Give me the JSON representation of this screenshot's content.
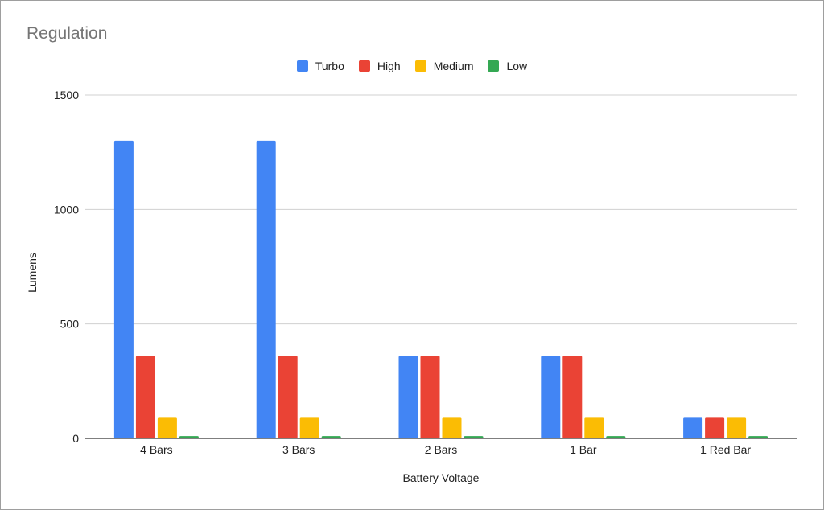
{
  "chart_data": {
    "type": "bar",
    "title": "Regulation",
    "xlabel": "Battery Voltage",
    "ylabel": "Lumens",
    "categories": [
      "4 Bars",
      "3 Bars",
      "2 Bars",
      "1 Bar",
      "1 Red Bar"
    ],
    "ylim": [
      0,
      1500
    ],
    "yticks": [
      "0",
      "500",
      "1000",
      "1500"
    ],
    "grid": true,
    "legend_position": "top-center",
    "series": [
      {
        "name": "Turbo",
        "color": "#4285f4",
        "values": [
          1300,
          1300,
          360,
          360,
          90
        ]
      },
      {
        "name": "High",
        "color": "#ea4335",
        "values": [
          360,
          360,
          360,
          360,
          90
        ]
      },
      {
        "name": "Medium",
        "color": "#fbbc04",
        "values": [
          90,
          90,
          90,
          90,
          90
        ]
      },
      {
        "name": "Low",
        "color": "#34a853",
        "values": [
          10,
          10,
          10,
          10,
          10
        ]
      }
    ]
  }
}
